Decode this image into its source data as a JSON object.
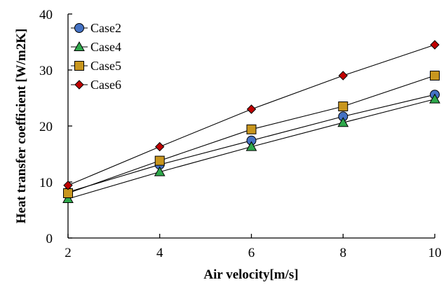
{
  "chart_data": {
    "type": "line",
    "title": "",
    "xlabel": "Air velocity[m/s]",
    "ylabel": "Heat transfer coefficient [W/m2K]",
    "xlim": [
      2,
      10
    ],
    "ylim": [
      0,
      40
    ],
    "x_ticks": [
      2,
      4,
      6,
      8,
      10
    ],
    "y_ticks": [
      0,
      10,
      20,
      30,
      40
    ],
    "grid": false,
    "legend_position": "top-left",
    "x": [
      2,
      4,
      6,
      8,
      10
    ],
    "series": [
      {
        "name": "Case2",
        "marker": "circle",
        "color": "#4472C4",
        "values": [
          8.2,
          13.1,
          17.4,
          21.7,
          25.6
        ]
      },
      {
        "name": "Case4",
        "marker": "triangle",
        "color": "#2EA84B",
        "values": [
          7.0,
          11.8,
          16.3,
          20.6,
          24.8
        ]
      },
      {
        "name": "Case5",
        "marker": "square",
        "color": "#C8961E",
        "values": [
          8.0,
          13.8,
          19.4,
          23.5,
          29.0
        ]
      },
      {
        "name": "Case6",
        "marker": "diamond",
        "color": "#C00000",
        "values": [
          9.4,
          16.3,
          23.0,
          29.0,
          34.5
        ]
      }
    ]
  }
}
